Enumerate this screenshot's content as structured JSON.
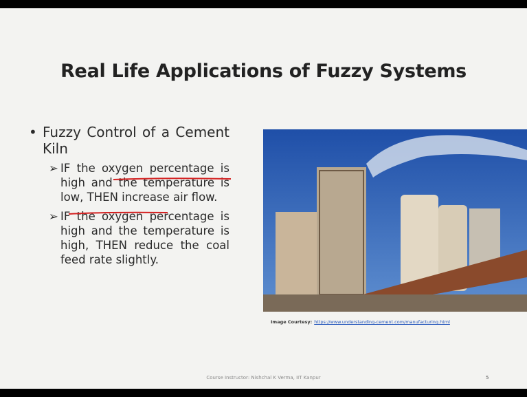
{
  "title": "Real Life Applications of Fuzzy Systems",
  "bullets": [
    {
      "text": "Fuzzy Control of a Cement Kiln",
      "subitems": [
        "IF the oxygen percentage is high and the temperature is low, THEN increase air flow.",
        "IF the oxygen percentage is high and the temperature is high, THEN reduce the coal feed rate slightly."
      ]
    }
  ],
  "image_caption": {
    "label": "Image Courtesy:",
    "link": "https://www.understanding-cement.com/manufacturing.html"
  },
  "footer": {
    "instructor": "Course Instructor: Nishchal K Verma, IIT Kanpur",
    "page": "5"
  }
}
